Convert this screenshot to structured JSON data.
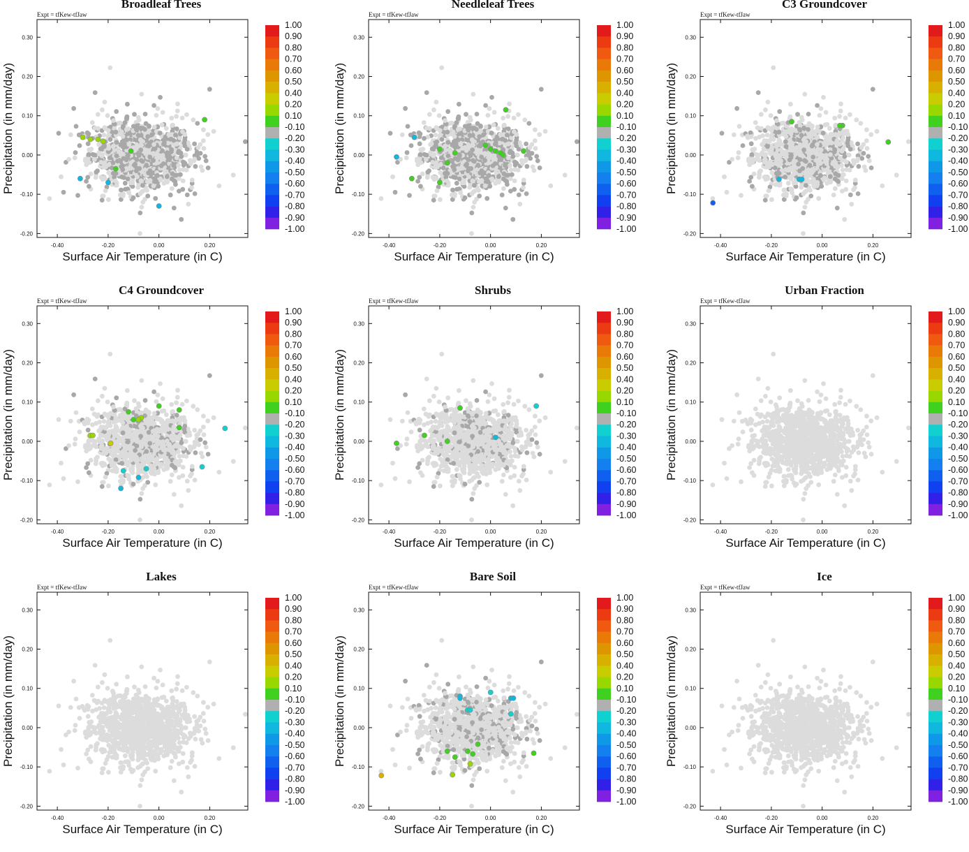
{
  "figure": {
    "expt_label": "Expt = tfKew-tfJaw",
    "panels": [
      {
        "title": "Broadleaf Trees",
        "xlabel": "Surface Air Temperature (in C)",
        "ylabel": "Precipitation (in mm/day)"
      },
      {
        "title": "Needleleaf Trees",
        "xlabel": "Surface Air Temperature (in C)",
        "ylabel": "Precipitation (in mm/day)"
      },
      {
        "title": "C3 Groundcover",
        "xlabel": "Surface Air Temperature (in C)",
        "ylabel": "Precipitation (in mm/day)"
      },
      {
        "title": "C4 Groundcover",
        "xlabel": "Surface Air Temperature (in C)",
        "ylabel": "Precipitation (in mm/day)"
      },
      {
        "title": "Shrubs",
        "xlabel": "Surface Air Temperature (in C)",
        "ylabel": "Precipitation (in mm/day)"
      },
      {
        "title": "Urban Fraction",
        "xlabel": "Surface Air Temperature (in C)",
        "ylabel": "Precipitation (in mm/day)"
      },
      {
        "title": "Lakes",
        "xlabel": "Surface Air Temperature (in C)",
        "ylabel": "Precipitation (in mm/day)"
      },
      {
        "title": "Bare Soil",
        "xlabel": "Surface Air Temperature (in C)",
        "ylabel": "Precipitation (in mm/day)"
      },
      {
        "title": "Ice",
        "xlabel": "Surface Air Temperature (in C)",
        "ylabel": "Precipitation (in mm/day)"
      }
    ]
  },
  "chart_data": {
    "type": "scatter",
    "x_ticks": [
      "-0.40",
      "-0.20",
      "0.00",
      "0.20"
    ],
    "y_ticks": [
      "-0.20",
      "-0.10",
      "0.00",
      "0.10",
      "0.20",
      "0.30"
    ],
    "xlim": [
      -0.48,
      0.35
    ],
    "ylim": [
      -0.21,
      0.345
    ],
    "colorbar": {
      "labels": [
        "1.00",
        "0.90",
        "0.80",
        "0.70",
        "0.60",
        "0.50",
        "0.40",
        "0.20",
        "0.10",
        "-0.10",
        "-0.20",
        "-0.30",
        "-0.40",
        "-0.50",
        "-0.60",
        "-0.70",
        "-0.80",
        "-0.90",
        "-1.00"
      ],
      "colors": [
        "#e31a1c",
        "#ec3a12",
        "#f05a10",
        "#ea7a08",
        "#dd9600",
        "#d8b000",
        "#c8cc00",
        "#98d800",
        "#40d020",
        "#b0b0b0",
        "#10d0d0",
        "#10b8e0",
        "#1098e8",
        "#1480f0",
        "#1060f0",
        "#1040f0",
        "#3020e8",
        "#5a18e0",
        "#8020e0"
      ]
    },
    "background_colors": {
      "light": "#dcdcdc",
      "dark": "#a8a8a8"
    },
    "panels": [
      {
        "dark_density": 1.0,
        "colored": [
          {
            "x": -0.3,
            "y": 0.045,
            "color": "#98d800"
          },
          {
            "x": -0.27,
            "y": 0.04,
            "color": "#98d800"
          },
          {
            "x": -0.24,
            "y": 0.04,
            "color": "#98d800"
          },
          {
            "x": -0.22,
            "y": 0.035,
            "color": "#98d800"
          },
          {
            "x": -0.11,
            "y": 0.01,
            "color": "#40d020"
          },
          {
            "x": -0.17,
            "y": -0.035,
            "color": "#40d020"
          },
          {
            "x": 0.18,
            "y": 0.09,
            "color": "#40d020"
          },
          {
            "x": -0.31,
            "y": -0.06,
            "color": "#10b8e0"
          },
          {
            "x": -0.2,
            "y": -0.07,
            "color": "#10b8e0"
          },
          {
            "x": 0.0,
            "y": -0.13,
            "color": "#10b8e0"
          }
        ]
      },
      {
        "dark_density": 1.0,
        "colored": [
          {
            "x": -0.3,
            "y": 0.045,
            "color": "#10b8e0"
          },
          {
            "x": -0.37,
            "y": -0.005,
            "color": "#10b8e0"
          },
          {
            "x": 0.06,
            "y": 0.115,
            "color": "#40d020"
          },
          {
            "x": -0.2,
            "y": 0.015,
            "color": "#40d020"
          },
          {
            "x": -0.14,
            "y": 0.005,
            "color": "#40d020"
          },
          {
            "x": -0.31,
            "y": -0.06,
            "color": "#40d020"
          },
          {
            "x": -0.2,
            "y": -0.07,
            "color": "#40d020"
          },
          {
            "x": -0.17,
            "y": -0.02,
            "color": "#40d020"
          },
          {
            "x": -0.02,
            "y": 0.025,
            "color": "#40d020"
          },
          {
            "x": 0.0,
            "y": 0.015,
            "color": "#40d020"
          },
          {
            "x": 0.02,
            "y": 0.01,
            "color": "#40d020"
          },
          {
            "x": 0.04,
            "y": 0.005,
            "color": "#40d020"
          },
          {
            "x": 0.05,
            "y": 0.0,
            "color": "#40d020"
          },
          {
            "x": 0.13,
            "y": 0.01,
            "color": "#40d020"
          }
        ]
      },
      {
        "dark_density": 0.55,
        "colored": [
          {
            "x": -0.12,
            "y": 0.085,
            "color": "#40d020"
          },
          {
            "x": 0.08,
            "y": 0.075,
            "color": "#40d020"
          },
          {
            "x": 0.07,
            "y": 0.075,
            "color": "#40d020"
          },
          {
            "x": 0.26,
            "y": 0.033,
            "color": "#40d020"
          },
          {
            "x": -0.17,
            "y": -0.062,
            "color": "#10b8e0"
          },
          {
            "x": -0.09,
            "y": -0.062,
            "color": "#10b8e0"
          },
          {
            "x": -0.08,
            "y": -0.062,
            "color": "#10b8e0"
          },
          {
            "x": -0.43,
            "y": -0.122,
            "color": "#1060f0"
          }
        ]
      },
      {
        "dark_density": 0.35,
        "colored": [
          {
            "x": -0.12,
            "y": 0.075,
            "color": "#40d020"
          },
          {
            "x": -0.1,
            "y": 0.055,
            "color": "#40d020"
          },
          {
            "x": -0.07,
            "y": 0.06,
            "color": "#98d800"
          },
          {
            "x": -0.08,
            "y": 0.055,
            "color": "#98d800"
          },
          {
            "x": 0.0,
            "y": 0.09,
            "color": "#40d020"
          },
          {
            "x": 0.08,
            "y": 0.08,
            "color": "#40d020"
          },
          {
            "x": 0.08,
            "y": 0.035,
            "color": "#40d020"
          },
          {
            "x": -0.27,
            "y": 0.015,
            "color": "#98d800"
          },
          {
            "x": -0.26,
            "y": 0.015,
            "color": "#98d800"
          },
          {
            "x": -0.19,
            "y": -0.005,
            "color": "#c8cc00"
          },
          {
            "x": 0.26,
            "y": 0.033,
            "color": "#10d0d0"
          },
          {
            "x": -0.14,
            "y": -0.075,
            "color": "#10d0d0"
          },
          {
            "x": -0.05,
            "y": -0.07,
            "color": "#10d0d0"
          },
          {
            "x": -0.08,
            "y": -0.092,
            "color": "#10b8e0"
          },
          {
            "x": 0.17,
            "y": -0.065,
            "color": "#10d0d0"
          },
          {
            "x": -0.15,
            "y": -0.12,
            "color": "#10b8e0"
          }
        ]
      },
      {
        "dark_density": 0.3,
        "colored": [
          {
            "x": -0.12,
            "y": 0.085,
            "color": "#40d020"
          },
          {
            "x": -0.26,
            "y": 0.015,
            "color": "#40d020"
          },
          {
            "x": -0.37,
            "y": -0.005,
            "color": "#40d020"
          },
          {
            "x": -0.17,
            "y": 0.0,
            "color": "#40d020"
          },
          {
            "x": 0.18,
            "y": 0.09,
            "color": "#10d0d0"
          },
          {
            "x": 0.02,
            "y": 0.01,
            "color": "#10b8e0"
          }
        ]
      },
      {
        "dark_density": 0.0,
        "colored": []
      },
      {
        "dark_density": 0.0,
        "colored": []
      },
      {
        "dark_density": 0.4,
        "colored": [
          {
            "x": -0.12,
            "y": 0.08,
            "color": "#10b8e0"
          },
          {
            "x": -0.12,
            "y": 0.075,
            "color": "#10b8e0"
          },
          {
            "x": -0.09,
            "y": 0.045,
            "color": "#10d0d0"
          },
          {
            "x": -0.08,
            "y": 0.045,
            "color": "#10d0d0"
          },
          {
            "x": 0.0,
            "y": 0.09,
            "color": "#10d0d0"
          },
          {
            "x": 0.08,
            "y": 0.075,
            "color": "#10b8e0"
          },
          {
            "x": 0.09,
            "y": 0.075,
            "color": "#10b8e0"
          },
          {
            "x": 0.08,
            "y": 0.035,
            "color": "#10d0d0"
          },
          {
            "x": -0.05,
            "y": -0.042,
            "color": "#40d020"
          },
          {
            "x": -0.09,
            "y": -0.06,
            "color": "#40d020"
          },
          {
            "x": -0.07,
            "y": -0.067,
            "color": "#40d020"
          },
          {
            "x": -0.17,
            "y": -0.06,
            "color": "#40d020"
          },
          {
            "x": -0.14,
            "y": -0.075,
            "color": "#40d020"
          },
          {
            "x": -0.08,
            "y": -0.092,
            "color": "#98d800"
          },
          {
            "x": 0.17,
            "y": -0.065,
            "color": "#40d020"
          },
          {
            "x": -0.15,
            "y": -0.12,
            "color": "#98d800"
          },
          {
            "x": -0.43,
            "y": -0.122,
            "color": "#d8b000"
          }
        ]
      },
      {
        "dark_density": 0.0,
        "colored": []
      }
    ]
  }
}
